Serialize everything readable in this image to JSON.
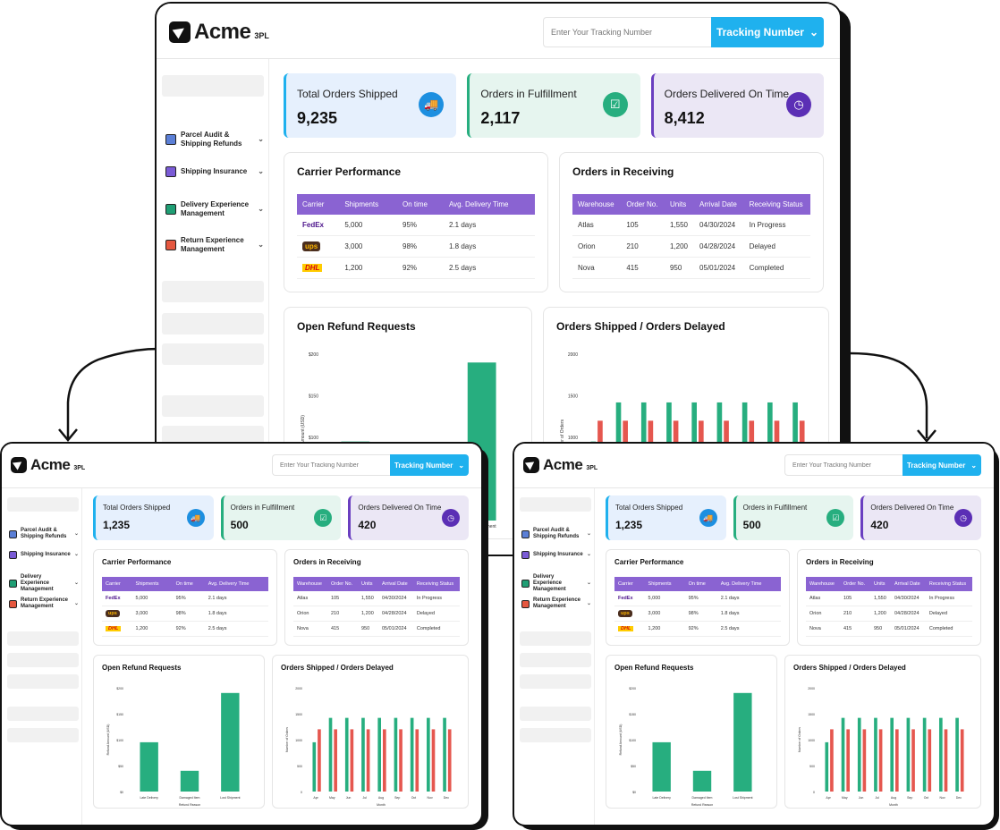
{
  "brand": {
    "name": "Acme",
    "suffix": "3PL"
  },
  "search": {
    "placeholder": "Enter Your Tracking Number",
    "button_label": "Tracking Number"
  },
  "sidebar": {
    "items": [
      {
        "label": "Parcel Audit & Shipping Refunds",
        "icon": "dollar-receipt-icon",
        "color": "#5b7fd6"
      },
      {
        "label": "Shipping Insurance",
        "icon": "insurance-box-icon",
        "color": "#7a5bd6"
      },
      {
        "label": "Delivery Experience Management",
        "icon": "location-pin-icon",
        "color": "#1f9e74"
      },
      {
        "label": "Return Experience Management",
        "icon": "return-arrow-icon",
        "color": "#e5573f"
      }
    ]
  },
  "colors": {
    "blue_card": "#e6f0fd",
    "green_card": "#e6f5ef",
    "purple_card": "#ebe7f5",
    "accent_blue": "#1fb1ee",
    "table_header": "#8a63d2",
    "bar_green": "#27ae7f",
    "bar_red": "#e5574f"
  },
  "big": {
    "kpis": [
      {
        "label": "Total Orders Shipped",
        "value": "9,235",
        "icon": "truck-icon"
      },
      {
        "label": "Orders in Fulfillment",
        "value": "2,117",
        "icon": "checklist-icon"
      },
      {
        "label": "Orders Delivered On Time",
        "value": "8,412",
        "icon": "clock-icon"
      }
    ]
  },
  "small": {
    "kpis": [
      {
        "label": "Total Orders Shipped",
        "value": "1,235",
        "icon": "truck-icon"
      },
      {
        "label": "Orders in Fulfillment",
        "value": "500",
        "icon": "checklist-icon"
      },
      {
        "label": "Orders Delivered On Time",
        "value": "420",
        "icon": "clock-icon"
      }
    ]
  },
  "carrier": {
    "title": "Carrier Performance",
    "columns": [
      "Carrier",
      "Shipments",
      "On time",
      "Avg. Delivery Time"
    ],
    "rows": [
      {
        "carrier": "FedEx",
        "shipments": "5,000",
        "on_time": "95%",
        "avg": "2.1 days"
      },
      {
        "carrier": "ups",
        "shipments": "3,000",
        "on_time": "98%",
        "avg": "1.8 days"
      },
      {
        "carrier": "DHL",
        "shipments": "1,200",
        "on_time": "92%",
        "avg": "2.5 days"
      }
    ]
  },
  "receiving": {
    "title": "Orders in Receiving",
    "columns": [
      "Warehouse",
      "Order No.",
      "Units",
      "Arrival Date",
      "Receiving Status"
    ],
    "rows": [
      {
        "warehouse": "Atlas",
        "order": "105",
        "units": "1,550",
        "date": "04/30/2024",
        "status": "In Progress"
      },
      {
        "warehouse": "Orion",
        "order": "210",
        "units": "1,200",
        "date": "04/28/2024",
        "status": "Delayed"
      },
      {
        "warehouse": "Nova",
        "order": "415",
        "units": "950",
        "date": "05/01/2024",
        "status": "Completed"
      }
    ]
  },
  "refund_title": "Open Refund Requests",
  "shipped_title": "Orders Shipped / Orders Delayed",
  "chart_data": [
    {
      "type": "bar",
      "title": "Open Refund Requests",
      "xlabel": "Refund Reason",
      "ylabel": "Refund Amount (USD)",
      "categories": [
        "Late Delivery",
        "Damaged Item",
        "Lost Shipment"
      ],
      "values": [
        95,
        40,
        190
      ],
      "yticks": [
        "$0",
        "$50",
        "$100",
        "$150",
        "$200"
      ],
      "ylim": [
        0,
        200
      ]
    },
    {
      "type": "bar",
      "title": "Orders Shipped / Orders Delayed",
      "xlabel": "Month",
      "ylabel": "Number of Orders",
      "categories": [
        "Apr",
        "May",
        "Jun",
        "Jul",
        "Aug",
        "Sep",
        "Oct",
        "Nov",
        "Dec"
      ],
      "series": [
        {
          "values": [
            950,
            1420,
            1420,
            1420,
            1420,
            1420,
            1420,
            1420,
            1420
          ]
        },
        {
          "values": [
            1200,
            1200,
            1200,
            1200,
            1200,
            1200,
            1200,
            1200,
            1200
          ]
        }
      ],
      "yticks": [
        "0",
        "500",
        "1000",
        "1500",
        "2000"
      ],
      "ylim": [
        0,
        2000
      ]
    }
  ]
}
